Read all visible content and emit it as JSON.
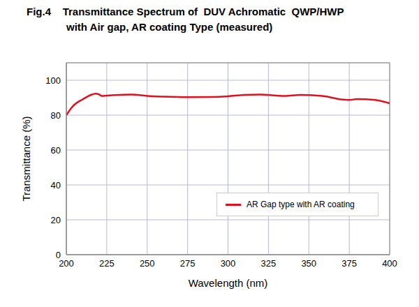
{
  "chart_data": {
    "type": "line",
    "title": "Fig.4    Transmittance Spectrum of  DUV Achromatic  QWP/HWP\nwith Air gap, AR coating Type (measured)",
    "x_label": "Wavelength (nm)",
    "y_label": "Transmittance (%)",
    "x": [
      200,
      203,
      205,
      210,
      215,
      218,
      220,
      222,
      225,
      230,
      240,
      250,
      260,
      275,
      290,
      300,
      310,
      320,
      330,
      335,
      345,
      355,
      360,
      370,
      375,
      380,
      390,
      400
    ],
    "series": [
      {
        "name": "AR Gap type with AR coating",
        "color": "#e0101e",
        "values": [
          80,
          84,
          86,
          89,
          91.5,
          92.3,
          92,
          91,
          91.2,
          91.5,
          91.8,
          91,
          90.6,
          90.3,
          90.4,
          90.8,
          91.6,
          91.8,
          91.2,
          91,
          91.6,
          91.2,
          90.8,
          89,
          88.7,
          89.2,
          88.8,
          86.8
        ]
      }
    ],
    "xlim": [
      200,
      400
    ],
    "xticks": [
      200,
      225,
      250,
      275,
      300,
      325,
      350,
      375,
      400
    ],
    "ylim": [
      0,
      110
    ],
    "yticks": [
      0,
      20,
      40,
      60,
      80,
      100
    ],
    "grid": true,
    "legend": "lower right"
  }
}
